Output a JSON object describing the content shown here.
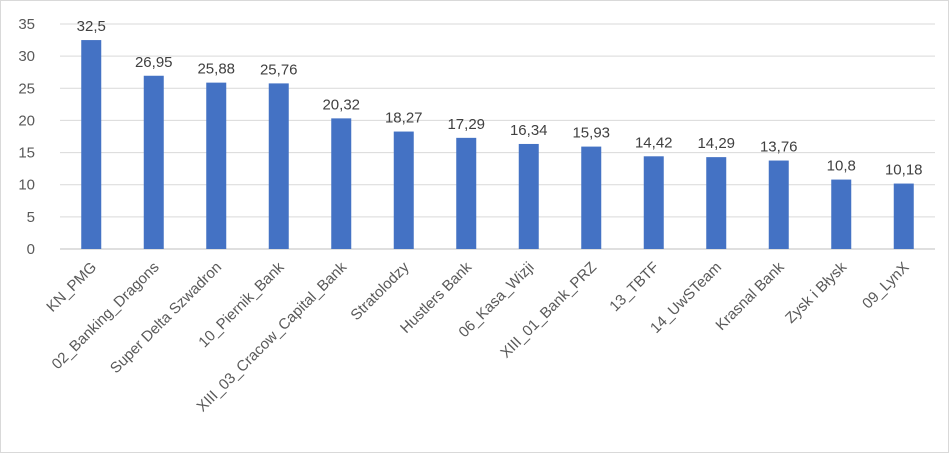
{
  "chart_data": {
    "type": "bar",
    "title": "",
    "xlabel": "",
    "ylabel": "",
    "ylim": [
      0,
      35
    ],
    "yticks": [
      0,
      5,
      10,
      15,
      20,
      25,
      30,
      35
    ],
    "grid": true,
    "legend": "none",
    "bar_color": "#4472C4",
    "categories": [
      "KN_PMG",
      "02_Banking_Dragons",
      "Super Delta Szwadron",
      "10_Piernik_Bank",
      "XIII_03_Cracow_Capital_Bank",
      "Stratolodzy",
      "Hustlers Bank",
      "06_Kasa_Wizji",
      "XIII_01_Bank_PRZ",
      "13_TBTF",
      "14_UwSTeam",
      "Krasnal Bank",
      "Zysk i Błysk",
      "09_LynX"
    ],
    "values": [
      32.5,
      26.95,
      25.88,
      25.76,
      20.32,
      18.27,
      17.29,
      16.34,
      15.93,
      14.42,
      14.29,
      13.76,
      10.8,
      10.18
    ],
    "data_labels": [
      "32,5",
      "26,95",
      "25,88",
      "25,76",
      "20,32",
      "18,27",
      "17,29",
      "16,34",
      "15,93",
      "14,42",
      "14,29",
      "13,76",
      "10,8",
      "10,18"
    ]
  }
}
